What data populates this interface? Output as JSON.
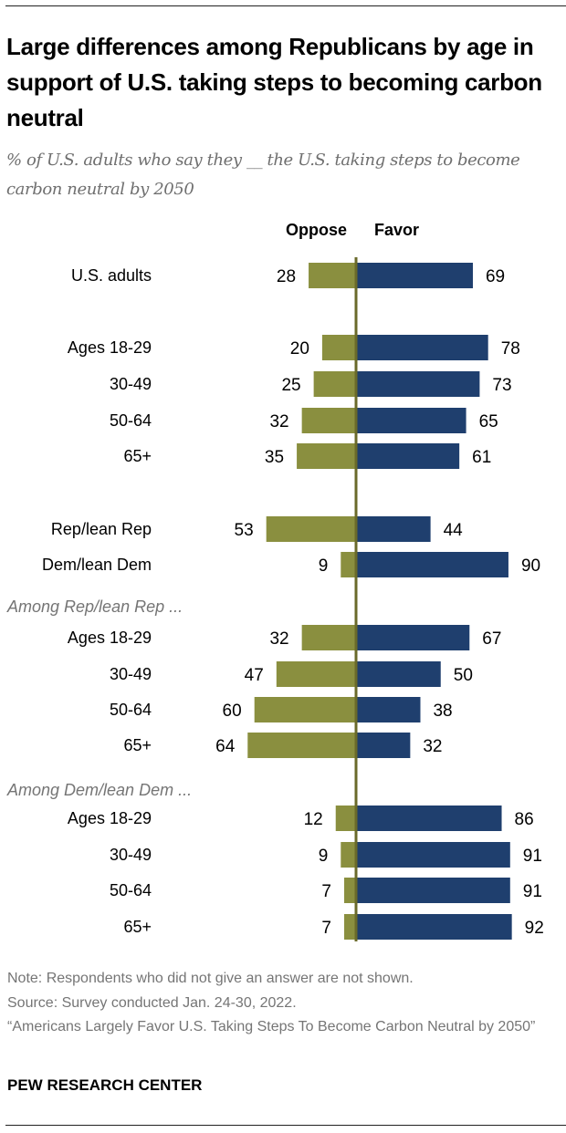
{
  "title": "Large differences among Republicans by age in support of U.S. taking steps to becoming carbon neutral",
  "subtitle": "% of U.S. adults who say they __ the U.S. taking steps to become carbon neutral by 2050",
  "notes": {
    "note": "Note: Respondents who did not give an answer are not shown.",
    "source": "Source: Survey conducted Jan. 24-30, 2022.",
    "report": "“Americans Largely Favor U.S. Taking Steps To Become Carbon Neutral by 2050”"
  },
  "brand": "PEW RESEARCH CENTER",
  "chart_data": {
    "type": "bar",
    "orientation": "horizontal-diverging",
    "colors": {
      "Oppose": "#8a8f3f",
      "Favor": "#1f3f6e",
      "axis": "#6a6a2a"
    },
    "series": [
      {
        "name": "Oppose",
        "values": [
          28,
          20,
          25,
          32,
          35,
          53,
          9,
          32,
          47,
          60,
          64,
          12,
          9,
          7,
          7
        ]
      },
      {
        "name": "Favor",
        "values": [
          69,
          78,
          73,
          65,
          61,
          44,
          90,
          67,
          50,
          38,
          32,
          86,
          91,
          91,
          92
        ]
      }
    ],
    "categories": [
      "U.S. adults",
      "Ages 18-29",
      "30-49",
      "50-64",
      "65+",
      "Rep/lean Rep",
      "Dem/lean Dem",
      "Ages 18-29",
      "30-49",
      "50-64",
      "65+",
      "Ages 18-29",
      "30-49",
      "50-64",
      "65+"
    ],
    "group_labels": [
      {
        "label": "Among Rep/lean Rep ...",
        "before_index": 7
      },
      {
        "label": "Among Dem/lean Dem ...",
        "before_index": 11
      }
    ],
    "xlim": [
      -100,
      100
    ]
  }
}
